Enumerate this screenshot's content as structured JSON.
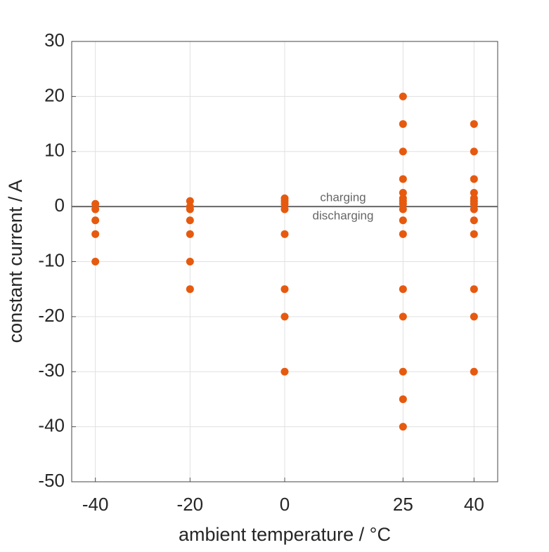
{
  "chart_data": {
    "type": "scatter",
    "xlabel": "ambient temperature / °C",
    "ylabel": "constant current / A",
    "x": [
      -40,
      -40,
      -40,
      -40,
      -40,
      -20,
      -20,
      -20,
      -20,
      -20,
      -20,
      -20,
      0,
      0,
      0,
      0,
      0,
      0,
      0,
      0,
      25,
      25,
      25,
      25,
      25,
      25,
      25,
      25,
      25,
      25,
      25,
      25,
      25,
      25,
      25,
      25,
      40,
      40,
      40,
      40,
      40,
      40,
      40,
      40,
      40,
      40,
      40,
      40,
      40
    ],
    "values": [
      0.5,
      -0.5,
      -2.5,
      -5,
      -10,
      1,
      0,
      -0.5,
      -2.5,
      -5,
      -10,
      -15,
      1.5,
      1,
      0.5,
      -0.5,
      -5,
      -15,
      -20,
      -30,
      20,
      15,
      10,
      5,
      2.5,
      1.5,
      1,
      0.5,
      -0.5,
      -2.5,
      -5,
      -15,
      -20,
      -30,
      -35,
      -40,
      15,
      10,
      5,
      2.5,
      1.5,
      1,
      0.5,
      -0.5,
      -2.5,
      -5,
      -15,
      -20,
      -30
    ],
    "color": "#e65a0f",
    "xlim": [
      -45,
      45
    ],
    "xticks": [
      -40,
      -20,
      0,
      25,
      40
    ],
    "ylim": [
      -50,
      30
    ],
    "yticks": [
      -50,
      -40,
      -30,
      -20,
      -10,
      0,
      10,
      20,
      30
    ],
    "grid": true,
    "reference_line": 0,
    "annotations": [
      "charging",
      "discharging"
    ]
  }
}
